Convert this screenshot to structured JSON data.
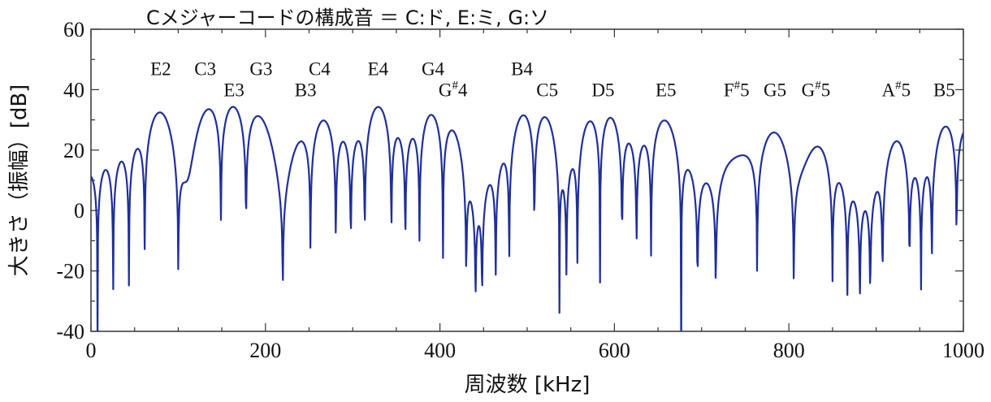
{
  "chart_data": {
    "type": "line",
    "title": "Cメジャーコードの構成音 ＝ C:ド, E:ミ, G:ソ",
    "xlabel": "周波数 [kHz]",
    "ylabel": "大きさ（振幅）[dB]",
    "xlim": [
      0,
      1000
    ],
    "ylim": [
      -40,
      60
    ],
    "xticks": [
      0,
      200,
      400,
      600,
      800,
      1000
    ],
    "yticks": [
      -40,
      -20,
      0,
      20,
      40,
      60
    ],
    "grid": false,
    "line_color": "#1f2f9a",
    "baseline_db": -40,
    "peaks": [
      {
        "x": 80,
        "db": 33
      },
      {
        "x": 131,
        "db": 33.5
      },
      {
        "x": 164,
        "db": 32
      },
      {
        "x": 195,
        "db": 31.5
      },
      {
        "x": 246,
        "db": 24.5
      },
      {
        "x": 262,
        "db": 30
      },
      {
        "x": 329,
        "db": 33
      },
      {
        "x": 392,
        "db": 29.5
      },
      {
        "x": 415,
        "db": 24.5
      },
      {
        "x": 494,
        "db": 29.5
      },
      {
        "x": 523,
        "db": 29
      },
      {
        "x": 573,
        "db": 28
      },
      {
        "x": 593,
        "db": 28.5
      },
      {
        "x": 659,
        "db": 29.5
      },
      {
        "x": 740,
        "db": 21
      },
      {
        "x": 784,
        "db": 27
      },
      {
        "x": 831,
        "db": 22.5
      },
      {
        "x": 923,
        "db": 22
      },
      {
        "x": 978,
        "db": 26
      },
      {
        "x": 1005,
        "db": 24
      }
    ],
    "annotations": [
      {
        "label": "E2",
        "x": 80,
        "y": 47
      },
      {
        "label": "C3",
        "x": 131,
        "y": 47
      },
      {
        "label": "E3",
        "x": 164,
        "y": 40
      },
      {
        "label": "G3",
        "x": 195,
        "y": 47
      },
      {
        "label": "B3",
        "x": 246,
        "y": 40
      },
      {
        "label": "C4",
        "x": 262,
        "y": 47
      },
      {
        "label": "E4",
        "x": 329,
        "y": 47
      },
      {
        "label": "G4",
        "x": 392,
        "y": 47
      },
      {
        "label": "G#4",
        "x": 415,
        "y": 40
      },
      {
        "label": "B4",
        "x": 494,
        "y": 47
      },
      {
        "label": "C5",
        "x": 523,
        "y": 40
      },
      {
        "label": "D5",
        "x": 587,
        "y": 40
      },
      {
        "label": "E5",
        "x": 659,
        "y": 40
      },
      {
        "label": "F#5",
        "x": 740,
        "y": 40
      },
      {
        "label": "G5",
        "x": 784,
        "y": 40
      },
      {
        "label": "G#5",
        "x": 831,
        "y": 40
      },
      {
        "label": "A#5",
        "x": 923,
        "y": 40
      },
      {
        "label": "B5",
        "x": 978,
        "y": 40
      }
    ]
  }
}
